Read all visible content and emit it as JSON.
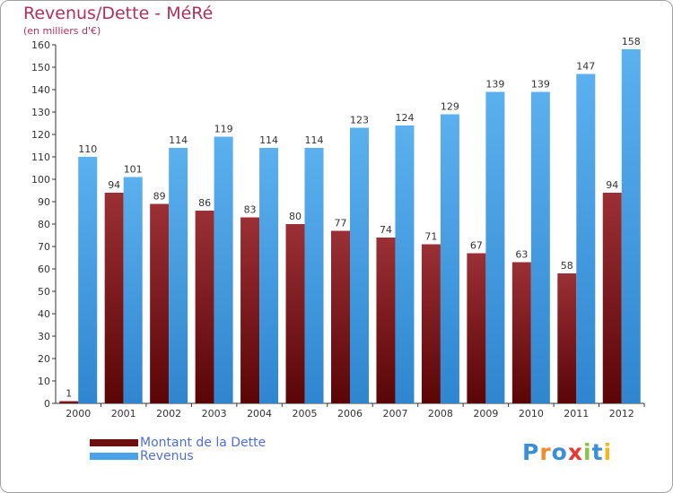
{
  "header": {
    "title": "Revenus/Dette - MéRé",
    "subtitle": "(en milliers d'€)"
  },
  "logo": {
    "letters": [
      {
        "ch": "P",
        "color": "#3b8fd6"
      },
      {
        "ch": "r",
        "color": "#f28c28"
      },
      {
        "ch": "o",
        "color": "#3b8fd6"
      },
      {
        "ch": "x",
        "color": "#e53935"
      },
      {
        "ch": "i",
        "color": "#8bc34a"
      },
      {
        "ch": "t",
        "color": "#3b8fd6"
      },
      {
        "ch": "i",
        "color": "#f2b71f"
      }
    ]
  },
  "legend": {
    "items": [
      {
        "label": "Montant de la Dette",
        "color": "#6b0f0f"
      },
      {
        "label": "Revenus",
        "color": "#4aa3e8"
      }
    ]
  },
  "chart_data": {
    "type": "bar",
    "title": "Revenus/Dette - MéRé",
    "subtitle": "(en milliers d'€)",
    "categories": [
      "2000",
      "2001",
      "2002",
      "2003",
      "2004",
      "2005",
      "2006",
      "2007",
      "2008",
      "2009",
      "2010",
      "2011",
      "2012"
    ],
    "series": [
      {
        "name": "Montant de la Dette",
        "color": "#7a1a1e",
        "values": [
          1,
          94,
          89,
          86,
          83,
          80,
          77,
          74,
          71,
          67,
          63,
          58,
          94
        ]
      },
      {
        "name": "Revenus",
        "color": "#4aa3e8",
        "values": [
          110,
          101,
          114,
          119,
          114,
          114,
          123,
          124,
          129,
          139,
          139,
          147,
          158
        ]
      }
    ],
    "ylim": [
      0,
      160
    ],
    "ytick_step": 10,
    "grid": false,
    "legend_position": "bottom-left"
  }
}
